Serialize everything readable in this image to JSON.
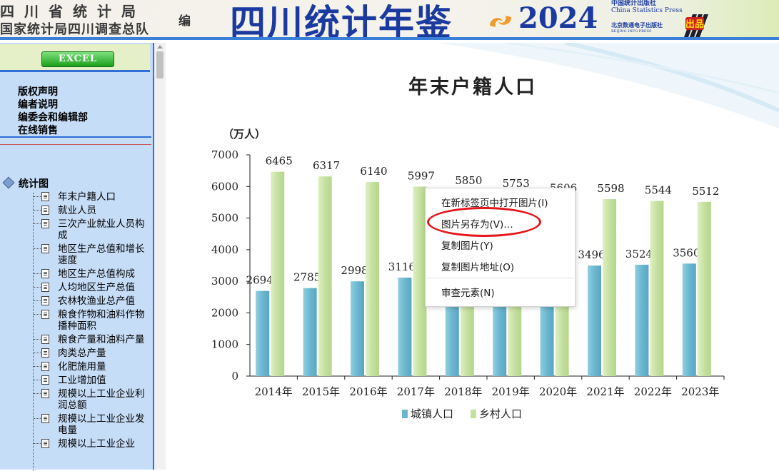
{
  "header": {
    "bureau_line1": "四川省统计局",
    "bureau_line2": "国家统计局四川调查总队",
    "editor_label": "编",
    "yearbook_title": "四川统计年鉴",
    "year": "2024",
    "publisher1_cn": "中国统计出版社",
    "publisher1_en": "China Statistics Press",
    "publisher2": "北京数通电子出版社",
    "publisher2_en": "BEIJING INFO PRESS",
    "badge": "出品"
  },
  "sidebar": {
    "excel_label": "EXCEL",
    "links": [
      "版权声明",
      "编者说明",
      "编委会和编辑部",
      "在线销售"
    ],
    "tree_root": "统计图",
    "tree_items": [
      "年末户籍人口",
      "就业人员",
      "三次产业就业人员构成",
      "地区生产总值和增长速度",
      "地区生产总值构成",
      "人均地区生产总值",
      "农林牧渔业总产值",
      "粮食作物和油料作物播种面积",
      "粮食产量和油料产量",
      "肉类总产量",
      "化肥施用量",
      "工业增加值",
      "规模以上工业企业利润总额",
      "规模以上工业企业发电量",
      "规模以上工业企业"
    ]
  },
  "chart_data": {
    "type": "bar",
    "title": "年末户籍人口",
    "unit_label": "（万人）",
    "categories": [
      "2014年",
      "2015年",
      "2016年",
      "2017年",
      "2018年",
      "2019年",
      "2020年",
      "2021年",
      "2022年",
      "2023年"
    ],
    "series": [
      {
        "name": "城镇人口",
        "values": [
          2694,
          2785,
          2998,
          3116,
          2280,
          2285,
          2280,
          3496,
          3524,
          3560
        ],
        "labels": [
          "2694",
          "2785",
          "2998",
          "3116",
          "",
          "",
          "",
          "3496",
          "3524",
          "3560"
        ],
        "color": "#6cb7cf"
      },
      {
        "name": "乡村人口",
        "values": [
          6465,
          6317,
          6140,
          5997,
          5850,
          5753,
          5606,
          5598,
          5544,
          5512
        ],
        "labels": [
          "6465",
          "6317",
          "6140",
          "5997",
          "5850",
          "5753",
          "5606",
          "5598",
          "5544",
          "5512"
        ],
        "color": "#c5e0a0"
      }
    ],
    "ylim": [
      0,
      7000
    ],
    "yticks": [
      "0",
      "1000",
      "2000",
      "3000",
      "4000",
      "5000",
      "6000",
      "7000"
    ],
    "legend_position": "bottom"
  },
  "context_menu": {
    "items": [
      "在新标签页中打开图片(I)",
      "图片另存为(V)…",
      "复制图片(Y)",
      "复制图片地址(O)",
      "审查元素(N)"
    ],
    "highlight_color": "#e4151a"
  }
}
